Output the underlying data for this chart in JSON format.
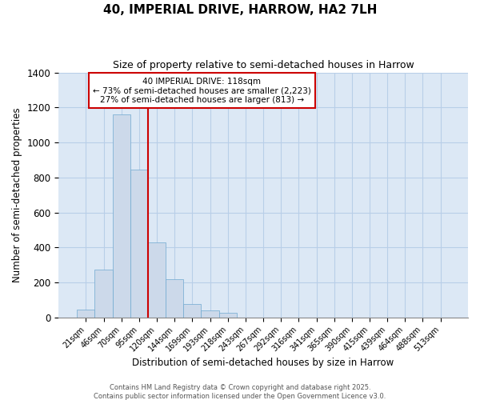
{
  "title": "40, IMPERIAL DRIVE, HARROW, HA2 7LH",
  "subtitle": "Size of property relative to semi-detached houses in Harrow",
  "xlabel": "Distribution of semi-detached houses by size in Harrow",
  "ylabel": "Number of semi-detached properties",
  "bar_labels": [
    "21sqm",
    "46sqm",
    "70sqm",
    "95sqm",
    "120sqm",
    "144sqm",
    "169sqm",
    "193sqm",
    "218sqm",
    "243sqm",
    "267sqm",
    "292sqm",
    "316sqm",
    "341sqm",
    "365sqm",
    "390sqm",
    "415sqm",
    "439sqm",
    "464sqm",
    "488sqm",
    "513sqm"
  ],
  "bar_values": [
    45,
    275,
    1160,
    845,
    430,
    220,
    75,
    38,
    25,
    0,
    0,
    0,
    0,
    0,
    0,
    0,
    0,
    0,
    0,
    0,
    0
  ],
  "bar_color": "#ccd9ea",
  "bar_edge_color": "#6fa8d0",
  "property_sqm": 118,
  "vline_bar_index": 4,
  "annotation_title": "40 IMPERIAL DRIVE: 118sqm",
  "annotation_line1": "← 73% of semi-detached houses are smaller (2,223)",
  "annotation_line2": "27% of semi-detached houses are larger (813) →",
  "annotation_box_color": "#ffffff",
  "annotation_box_edge": "#cc0000",
  "vline_color": "#cc0000",
  "ylim": [
    0,
    1400
  ],
  "fig_bg": "#ffffff",
  "plot_bg": "#dce8f5",
  "grid_color": "#b8cfe8",
  "footer1": "Contains HM Land Registry data © Crown copyright and database right 2025.",
  "footer2": "Contains public sector information licensed under the Open Government Licence v3.0."
}
